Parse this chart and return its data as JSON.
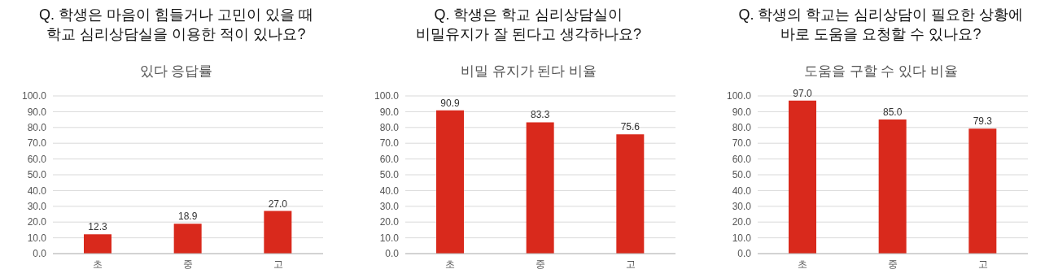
{
  "chart_data": [
    {
      "type": "bar",
      "title": "Q. 학생은 마음이 힘들거나 고민이 있을 때\n학교 심리상담실을 이용한 적이 있나요?",
      "subtitle": "있다 응답률",
      "categories": [
        "초",
        "중",
        "고"
      ],
      "values": [
        12.3,
        18.9,
        27.0
      ],
      "color": "#d9291c",
      "value_labels": [
        "12.3",
        "18.9",
        "27.0"
      ],
      "ylim": [
        0,
        100
      ],
      "yticks": [
        {
          "value": 0,
          "label": "0.0"
        },
        {
          "value": 10,
          "label": "10.0"
        },
        {
          "value": 20,
          "label": "20.0"
        },
        {
          "value": 30,
          "label": "30.0"
        },
        {
          "value": 40,
          "label": "40.0"
        },
        {
          "value": 50,
          "label": "50.0"
        },
        {
          "value": 60,
          "label": "60.0"
        },
        {
          "value": 70,
          "label": "70.0"
        },
        {
          "value": 80,
          "label": "80.0"
        },
        {
          "value": 90,
          "label": "90.0"
        },
        {
          "value": 100,
          "label": "100.0"
        }
      ],
      "grid": "y"
    },
    {
      "type": "bar",
      "title": "Q. 학생은 학교 심리상담실이\n비밀유지가 잘 된다고 생각하나요?",
      "subtitle": "비밀 유지가 된다 비율",
      "categories": [
        "초",
        "중",
        "고"
      ],
      "values": [
        90.9,
        83.3,
        75.6
      ],
      "color": "#d9291c",
      "value_labels": [
        "90.9",
        "83.3",
        "75.6"
      ],
      "ylim": [
        0,
        100
      ],
      "yticks": [
        {
          "value": 0,
          "label": "0.0"
        },
        {
          "value": 10,
          "label": "10.0"
        },
        {
          "value": 20,
          "label": "20.0"
        },
        {
          "value": 30,
          "label": "30.0"
        },
        {
          "value": 40,
          "label": "40.0"
        },
        {
          "value": 50,
          "label": "50.0"
        },
        {
          "value": 60,
          "label": "60.0"
        },
        {
          "value": 70,
          "label": "70.0"
        },
        {
          "value": 80,
          "label": "80.0"
        },
        {
          "value": 90,
          "label": "90.0"
        },
        {
          "value": 100,
          "label": "100.0"
        }
      ],
      "grid": "y"
    },
    {
      "type": "bar",
      "title": "Q. 학생의 학교는 심리상담이 필요한 상황에\n바로 도움을 요청할 수 있나요?",
      "subtitle": "도움을 구할 수 있다 비율",
      "categories": [
        "초",
        "중",
        "고"
      ],
      "values": [
        97.0,
        85.0,
        79.3
      ],
      "color": "#d9291c",
      "value_labels": [
        "97.0",
        "85.0",
        "79.3"
      ],
      "ylim": [
        0,
        100
      ],
      "yticks": [
        {
          "value": 0,
          "label": "0.0"
        },
        {
          "value": 10,
          "label": "10.0"
        },
        {
          "value": 20,
          "label": "20.0"
        },
        {
          "value": 30,
          "label": "30.0"
        },
        {
          "value": 40,
          "label": "40.0"
        },
        {
          "value": 50,
          "label": "50.0"
        },
        {
          "value": 60,
          "label": "60.0"
        },
        {
          "value": 70,
          "label": "70.0"
        },
        {
          "value": 80,
          "label": "80.0"
        },
        {
          "value": 90,
          "label": "90.0"
        },
        {
          "value": 100,
          "label": "100.0"
        }
      ],
      "grid": "y"
    }
  ]
}
